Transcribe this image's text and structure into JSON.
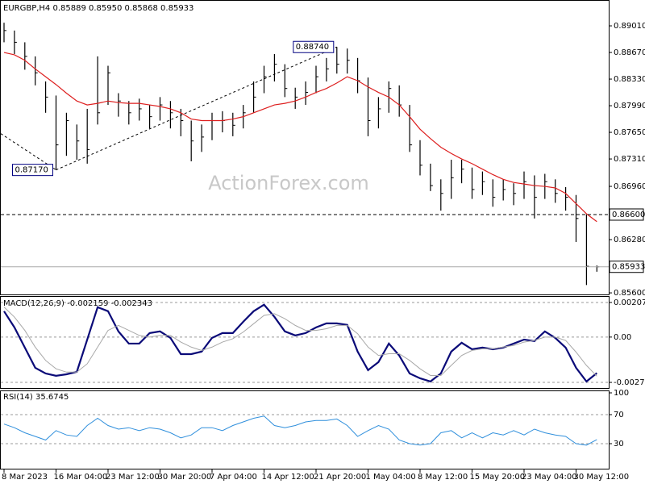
{
  "chart_data": [
    {
      "type": "ohlc",
      "title": "EURGBP,H4 0.85889 0.85950 0.85868 0.85933",
      "watermark": "ActionForex.com",
      "color": "#000000",
      "categories": [
        "8 Mar 2023",
        null,
        null,
        null,
        null,
        "16 Mar 04:00",
        null,
        null,
        null,
        null,
        "23 Mar 12:00",
        null,
        null,
        null,
        null,
        "30 Mar 20:00",
        null,
        null,
        null,
        null,
        "7 Apr 04:00",
        null,
        null,
        null,
        null,
        "14 Apr 12:00",
        null,
        null,
        null,
        null,
        "21 Apr 20:00",
        null,
        null,
        null,
        null,
        "1 May 04:00",
        null,
        null,
        null,
        null,
        "8 May 12:00",
        null,
        null,
        null,
        null,
        "15 May 20:00",
        null,
        null,
        null,
        null,
        "23 May 04:00",
        null,
        null,
        null,
        null,
        "30 May 12:00",
        null,
        null
      ],
      "high": [
        0.8905,
        0.8895,
        0.888,
        0.8862,
        0.883,
        0.8812,
        0.879,
        0.8775,
        0.8795,
        0.8862,
        0.885,
        0.8815,
        0.8805,
        0.8808,
        0.88,
        0.881,
        0.8805,
        0.8795,
        0.878,
        0.8775,
        0.879,
        0.8792,
        0.879,
        0.88,
        0.883,
        0.885,
        0.8865,
        0.8852,
        0.8822,
        0.883,
        0.885,
        0.886,
        0.8874,
        0.8872,
        0.886,
        0.8835,
        0.881,
        0.883,
        0.8825,
        0.88,
        0.8755,
        0.8725,
        0.8705,
        0.873,
        0.873,
        0.872,
        0.8715,
        0.8705,
        0.8705,
        0.87,
        0.8715,
        0.871,
        0.8712,
        0.8705,
        0.8695,
        0.8685,
        0.866,
        0.8595
      ],
      "low": [
        0.888,
        0.8865,
        0.8845,
        0.8825,
        0.879,
        0.8717,
        0.8735,
        0.873,
        0.8725,
        0.8775,
        0.88,
        0.8785,
        0.8775,
        0.878,
        0.877,
        0.878,
        0.877,
        0.876,
        0.8728,
        0.874,
        0.8755,
        0.8765,
        0.876,
        0.877,
        0.879,
        0.8815,
        0.883,
        0.881,
        0.8795,
        0.88,
        0.8815,
        0.883,
        0.884,
        0.884,
        0.8815,
        0.876,
        0.877,
        0.879,
        0.8785,
        0.874,
        0.871,
        0.869,
        0.8665,
        0.868,
        0.87,
        0.868,
        0.8685,
        0.867,
        0.8678,
        0.8672,
        0.868,
        0.8655,
        0.868,
        0.8675,
        0.8665,
        0.8625,
        0.857,
        0.8587
      ],
      "close": [
        0.8895,
        0.888,
        0.8862,
        0.8841,
        0.881,
        0.8749,
        0.878,
        0.8754,
        0.8743,
        0.879,
        0.8841,
        0.8805,
        0.879,
        0.8795,
        0.8785,
        0.88,
        0.879,
        0.878,
        0.8754,
        0.8759,
        0.878,
        0.878,
        0.8774,
        0.879,
        0.881,
        0.8836,
        0.8852,
        0.8821,
        0.881,
        0.8816,
        0.8836,
        0.8846,
        0.8852,
        0.8857,
        0.8831,
        0.878,
        0.8795,
        0.8821,
        0.88,
        0.8749,
        0.8723,
        0.8697,
        0.8687,
        0.8707,
        0.8718,
        0.8692,
        0.8702,
        0.8682,
        0.8692,
        0.8687,
        0.8702,
        0.8682,
        0.8702,
        0.8687,
        0.8682,
        0.8655,
        0.8594,
        0.85933
      ],
      "ma": {
        "color": "#dd1f1f",
        "values": [
          0.8867,
          0.8864,
          0.8857,
          0.8846,
          0.8836,
          0.8826,
          0.8815,
          0.8805,
          0.88,
          0.8802,
          0.8805,
          0.8803,
          0.8802,
          0.8802,
          0.88,
          0.8798,
          0.8795,
          0.879,
          0.8782,
          0.878,
          0.878,
          0.878,
          0.8782,
          0.8785,
          0.879,
          0.8795,
          0.88,
          0.8802,
          0.8805,
          0.881,
          0.8816,
          0.8821,
          0.8828,
          0.8836,
          0.8831,
          0.8823,
          0.8816,
          0.881,
          0.88,
          0.8785,
          0.8769,
          0.8757,
          0.8746,
          0.8738,
          0.8731,
          0.8725,
          0.8718,
          0.8711,
          0.8705,
          0.8701,
          0.8699,
          0.8697,
          0.8696,
          0.8694,
          0.8687,
          0.8674,
          0.8661,
          0.8651
        ]
      },
      "ylim": [
        0.8558,
        0.8934
      ],
      "yticks": [
        {
          "value": 0.8901,
          "label": "0.89010"
        },
        {
          "value": 0.8867,
          "label": "0.88670"
        },
        {
          "value": 0.8833,
          "label": "0.88330"
        },
        {
          "value": 0.8799,
          "label": "0.87990"
        },
        {
          "value": 0.8765,
          "label": "0.87650"
        },
        {
          "value": 0.8731,
          "label": "0.87310"
        },
        {
          "value": 0.8696,
          "label": "0.86960"
        },
        {
          "value": 0.8628,
          "label": "0.86280"
        },
        {
          "value": 0.856,
          "label": "0.85600"
        }
      ],
      "levels": [
        {
          "value": 0.866,
          "label": "0.86600"
        },
        {
          "value": 0.85933,
          "label": "0.85933"
        }
      ],
      "annotations": [
        {
          "label": "0.87170",
          "value": 0.8717,
          "index": 5
        },
        {
          "label": "0.88740",
          "value": 0.8874,
          "index": 32
        }
      ]
    },
    {
      "type": "line",
      "title": "MACD(12,26,9) -0.002159 -0.002343",
      "series": [
        {
          "color": "#0a0a78",
          "values": [
            0.00155,
            0.00058,
            -0.00063,
            -0.00184,
            -0.00218,
            -0.00232,
            -0.00223,
            -0.00208,
            -0.00015,
            0.00179,
            0.00155,
            0.00034,
            -0.00039,
            -0.00039,
            0.00024,
            0.00034,
            -5e-05,
            -0.00102,
            -0.00102,
            -0.00087,
            -5e-05,
            0.00024,
            0.00024,
            0.00092,
            0.00155,
            0.00194,
            0.00121,
            0.00034,
            0.0001,
            0.00024,
            0.00058,
            0.00082,
            0.00082,
            0.00073,
            -0.00087,
            -0.00198,
            -0.0015,
            -0.00039,
            -0.00111,
            -0.00218,
            -0.00247,
            -0.00266,
            -0.00218,
            -0.00087,
            -0.00034,
            -0.00073,
            -0.00063,
            -0.00073,
            -0.00063,
            -0.00039,
            -0.00015,
            -0.00024,
            0.00034,
            -5e-05,
            -0.00063,
            -0.00184,
            -0.00266,
            -0.002159
          ]
        },
        {
          "color": "#a8a8a8",
          "values": [
            0.0018,
            0.0012,
            0.0004,
            -0.0006,
            -0.0014,
            -0.0019,
            -0.0021,
            -0.0021,
            -0.0016,
            -0.0006,
            0.0004,
            0.0007,
            0.0004,
            0.0001,
            0.0,
            0.0001,
            0.0001,
            -0.0003,
            -0.0006,
            -0.0008,
            -0.0006,
            -0.0003,
            -0.0001,
            0.0003,
            0.0008,
            0.0013,
            0.0014,
            0.0011,
            0.0007,
            0.0004,
            0.0004,
            0.0005,
            0.0007,
            0.0007,
            0.0002,
            -0.0006,
            -0.0011,
            -0.001,
            -0.001,
            -0.0014,
            -0.0019,
            -0.0023,
            -0.0023,
            -0.0017,
            -0.0011,
            -0.0008,
            -0.0007,
            -0.0007,
            -0.0006,
            -0.0005,
            -0.0003,
            -0.0002,
            0.0,
            0.0,
            -0.0002,
            -0.0009,
            -0.0017,
            -0.002343
          ]
        }
      ],
      "ylim": [
        -0.0031,
        0.00241
      ],
      "yticks": [
        0.002074,
        {
          "value": 0,
          "label": "0.00"
        },
        -0.002716
      ]
    },
    {
      "type": "line",
      "title": "RSI(14) 35.6745",
      "series": [
        {
          "color": "#2f8fdc",
          "values": [
            57,
            52,
            45,
            40,
            35,
            48,
            42,
            40,
            55,
            65,
            55,
            50,
            52,
            48,
            52,
            50,
            45,
            38,
            42,
            52,
            52,
            48,
            55,
            60,
            65,
            68,
            55,
            52,
            55,
            60,
            62,
            62,
            64,
            55,
            40,
            48,
            55,
            50,
            35,
            30,
            28,
            30,
            45,
            48,
            38,
            45,
            38,
            45,
            42,
            48,
            42,
            50,
            45,
            42,
            40,
            30,
            28,
            35.6745
          ]
        }
      ],
      "ylim": [
        0,
        100
      ],
      "yticks": [
        100,
        70,
        30
      ]
    }
  ]
}
